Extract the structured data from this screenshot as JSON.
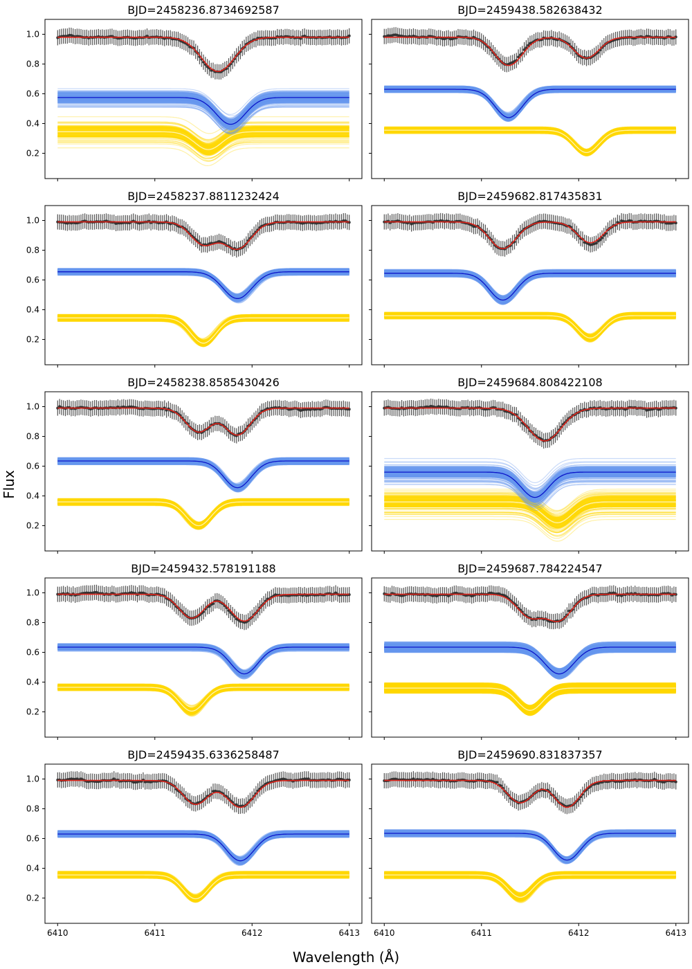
{
  "figure": {
    "xlabel": "Wavelength (Å)",
    "ylabel": "Flux"
  },
  "colors": {
    "observed_points": "#333333",
    "total_model": "#e0241b",
    "primary_samples": "#6495ed",
    "primary_mean": "#0a14c8",
    "secondary_samples": "#ffd700",
    "secondary_mean": "#fff4b0",
    "frame": "#000000"
  },
  "chart_data": [
    {
      "type": "line",
      "title": "BJD=2458236.8734692587",
      "x_range": [
        6410,
        6413
      ],
      "xlim": [
        6409.87,
        6413.13
      ],
      "ylim": [
        0.03,
        1.1
      ],
      "xticks": [
        6410,
        6411,
        6412,
        6413
      ],
      "yticks": [
        0.2,
        0.4,
        0.6,
        0.8,
        1.0
      ],
      "show_xticklabels": false,
      "show_yticklabels": true,
      "total_model": {
        "continuum": 0.98,
        "lines": [
          {
            "center": 6411.65,
            "depth": 0.23,
            "width": 0.17
          }
        ]
      },
      "primary": {
        "level": 0.575,
        "center": 6411.78,
        "depth": 0.18,
        "width": 0.15,
        "band": 0.14
      },
      "secondary": {
        "level": 0.345,
        "center": 6411.55,
        "depth": 0.12,
        "width": 0.14,
        "band": 0.19
      }
    },
    {
      "type": "line",
      "title": "BJD=2459438.582638432",
      "x_range": [
        6410,
        6413
      ],
      "xlim": [
        6409.87,
        6413.13
      ],
      "ylim": [
        0.03,
        1.1
      ],
      "xticks": [
        6410,
        6411,
        6412,
        6413
      ],
      "yticks": [
        0.2,
        0.4,
        0.6,
        0.8,
        1.0
      ],
      "show_xticklabels": false,
      "show_yticklabels": false,
      "total_model": {
        "continuum": 0.98,
        "lines": [
          {
            "center": 6411.28,
            "depth": 0.19,
            "width": 0.14
          },
          {
            "center": 6412.08,
            "depth": 0.14,
            "width": 0.13
          }
        ]
      },
      "primary": {
        "level": 0.63,
        "center": 6411.28,
        "depth": 0.19,
        "width": 0.14,
        "band": 0.04
      },
      "secondary": {
        "level": 0.355,
        "center": 6412.08,
        "depth": 0.15,
        "width": 0.13,
        "band": 0.04
      }
    },
    {
      "type": "line",
      "title": "BJD=2458237.8811232424",
      "x_range": [
        6410,
        6413
      ],
      "xlim": [
        6409.87,
        6413.13
      ],
      "ylim": [
        0.03,
        1.1
      ],
      "xticks": [
        6410,
        6411,
        6412,
        6413
      ],
      "yticks": [
        0.2,
        0.4,
        0.6,
        0.8,
        1.0
      ],
      "show_xticklabels": false,
      "show_yticklabels": true,
      "total_model": {
        "continuum": 0.99,
        "lines": [
          {
            "center": 6411.5,
            "depth": 0.15,
            "width": 0.13
          },
          {
            "center": 6411.85,
            "depth": 0.18,
            "width": 0.14
          }
        ]
      },
      "primary": {
        "level": 0.655,
        "center": 6411.85,
        "depth": 0.18,
        "width": 0.15,
        "band": 0.04
      },
      "secondary": {
        "level": 0.345,
        "center": 6411.5,
        "depth": 0.17,
        "width": 0.13,
        "band": 0.04
      }
    },
    {
      "type": "line",
      "title": "BJD=2459682.817435831",
      "x_range": [
        6410,
        6413
      ],
      "xlim": [
        6409.87,
        6413.13
      ],
      "ylim": [
        0.03,
        1.1
      ],
      "xticks": [
        6410,
        6411,
        6412,
        6413
      ],
      "yticks": [
        0.2,
        0.4,
        0.6,
        0.8,
        1.0
      ],
      "show_xticklabels": false,
      "show_yticklabels": false,
      "total_model": {
        "continuum": 0.99,
        "lines": [
          {
            "center": 6411.22,
            "depth": 0.18,
            "width": 0.14
          },
          {
            "center": 6412.12,
            "depth": 0.14,
            "width": 0.13
          }
        ]
      },
      "primary": {
        "level": 0.645,
        "center": 6411.22,
        "depth": 0.18,
        "width": 0.14,
        "band": 0.04
      },
      "secondary": {
        "level": 0.36,
        "center": 6412.12,
        "depth": 0.15,
        "width": 0.13,
        "band": 0.04
      }
    },
    {
      "type": "line",
      "title": "BJD=2458238.8585430426",
      "x_range": [
        6410,
        6413
      ],
      "xlim": [
        6409.87,
        6413.13
      ],
      "ylim": [
        0.03,
        1.1
      ],
      "xticks": [
        6410,
        6411,
        6412,
        6413
      ],
      "yticks": [
        0.2,
        0.4,
        0.6,
        0.8,
        1.0
      ],
      "show_xticklabels": false,
      "show_yticklabels": true,
      "total_model": {
        "continuum": 0.99,
        "lines": [
          {
            "center": 6411.45,
            "depth": 0.16,
            "width": 0.13
          },
          {
            "center": 6411.85,
            "depth": 0.18,
            "width": 0.13
          }
        ]
      },
      "primary": {
        "level": 0.635,
        "center": 6411.85,
        "depth": 0.18,
        "width": 0.14,
        "band": 0.04
      },
      "secondary": {
        "level": 0.36,
        "center": 6411.45,
        "depth": 0.16,
        "width": 0.13,
        "band": 0.04
      }
    },
    {
      "type": "line",
      "title": "BJD=2459684.808422108",
      "x_range": [
        6410,
        6413
      ],
      "xlim": [
        6409.87,
        6413.13
      ],
      "ylim": [
        0.03,
        1.1
      ],
      "xticks": [
        6410,
        6411,
        6412,
        6413
      ],
      "yticks": [
        0.2,
        0.4,
        0.6,
        0.8,
        1.0
      ],
      "show_xticklabels": false,
      "show_yticklabels": false,
      "total_model": {
        "continuum": 0.99,
        "lines": [
          {
            "center": 6411.65,
            "depth": 0.22,
            "width": 0.17
          }
        ]
      },
      "primary": {
        "level": 0.56,
        "center": 6411.55,
        "depth": 0.17,
        "width": 0.14,
        "band": 0.16
      },
      "secondary": {
        "level": 0.36,
        "center": 6411.78,
        "depth": 0.14,
        "width": 0.15,
        "band": 0.21
      }
    },
    {
      "type": "line",
      "title": "BJD=2459432.578191188",
      "x_range": [
        6410,
        6413
      ],
      "xlim": [
        6409.87,
        6413.13
      ],
      "ylim": [
        0.03,
        1.1
      ],
      "xticks": [
        6410,
        6411,
        6412,
        6413
      ],
      "yticks": [
        0.2,
        0.4,
        0.6,
        0.8,
        1.0
      ],
      "show_xticklabels": false,
      "show_yticklabels": true,
      "total_model": {
        "continuum": 0.99,
        "lines": [
          {
            "center": 6411.38,
            "depth": 0.16,
            "width": 0.13
          },
          {
            "center": 6411.92,
            "depth": 0.18,
            "width": 0.14
          }
        ]
      },
      "primary": {
        "level": 0.635,
        "center": 6411.92,
        "depth": 0.18,
        "width": 0.14,
        "band": 0.04
      },
      "secondary": {
        "level": 0.365,
        "center": 6411.38,
        "depth": 0.16,
        "width": 0.13,
        "band": 0.04
      }
    },
    {
      "type": "line",
      "title": "BJD=2459687.784224547",
      "x_range": [
        6410,
        6413
      ],
      "xlim": [
        6409.87,
        6413.13
      ],
      "ylim": [
        0.03,
        1.1
      ],
      "xticks": [
        6410,
        6411,
        6412,
        6413
      ],
      "yticks": [
        0.2,
        0.4,
        0.6,
        0.8,
        1.0
      ],
      "show_xticklabels": false,
      "show_yticklabels": false,
      "total_model": {
        "continuum": 0.99,
        "lines": [
          {
            "center": 6411.5,
            "depth": 0.15,
            "width": 0.13
          },
          {
            "center": 6411.8,
            "depth": 0.17,
            "width": 0.13
          }
        ]
      },
      "primary": {
        "level": 0.635,
        "center": 6411.8,
        "depth": 0.18,
        "width": 0.15,
        "band": 0.07
      },
      "secondary": {
        "level": 0.36,
        "center": 6411.5,
        "depth": 0.15,
        "width": 0.13,
        "band": 0.07
      }
    },
    {
      "type": "line",
      "title": "BJD=2459435.6336258487",
      "x_range": [
        6410,
        6413
      ],
      "xlim": [
        6409.87,
        6413.13
      ],
      "ylim": [
        0.03,
        1.1
      ],
      "xticks": [
        6410,
        6411,
        6412,
        6413
      ],
      "yticks": [
        0.2,
        0.4,
        0.6,
        0.8,
        1.0
      ],
      "show_xticklabels": true,
      "show_yticklabels": true,
      "total_model": {
        "continuum": 0.99,
        "lines": [
          {
            "center": 6411.42,
            "depth": 0.16,
            "width": 0.13
          },
          {
            "center": 6411.88,
            "depth": 0.18,
            "width": 0.14
          }
        ]
      },
      "primary": {
        "level": 0.63,
        "center": 6411.88,
        "depth": 0.18,
        "width": 0.14,
        "band": 0.04
      },
      "secondary": {
        "level": 0.355,
        "center": 6411.42,
        "depth": 0.16,
        "width": 0.13,
        "band": 0.04
      }
    },
    {
      "type": "line",
      "title": "BJD=2459690.831837357",
      "x_range": [
        6410,
        6413
      ],
      "xlim": [
        6409.87,
        6413.13
      ],
      "ylim": [
        0.03,
        1.1
      ],
      "xticks": [
        6410,
        6411,
        6412,
        6413
      ],
      "yticks": [
        0.2,
        0.4,
        0.6,
        0.8,
        1.0
      ],
      "show_xticklabels": true,
      "show_yticklabels": false,
      "total_model": {
        "continuum": 0.99,
        "lines": [
          {
            "center": 6411.4,
            "depth": 0.15,
            "width": 0.13
          },
          {
            "center": 6411.88,
            "depth": 0.18,
            "width": 0.13
          }
        ]
      },
      "primary": {
        "level": 0.635,
        "center": 6411.88,
        "depth": 0.18,
        "width": 0.14,
        "band": 0.04
      },
      "secondary": {
        "level": 0.355,
        "center": 6411.4,
        "depth": 0.15,
        "width": 0.13,
        "band": 0.04
      }
    }
  ]
}
